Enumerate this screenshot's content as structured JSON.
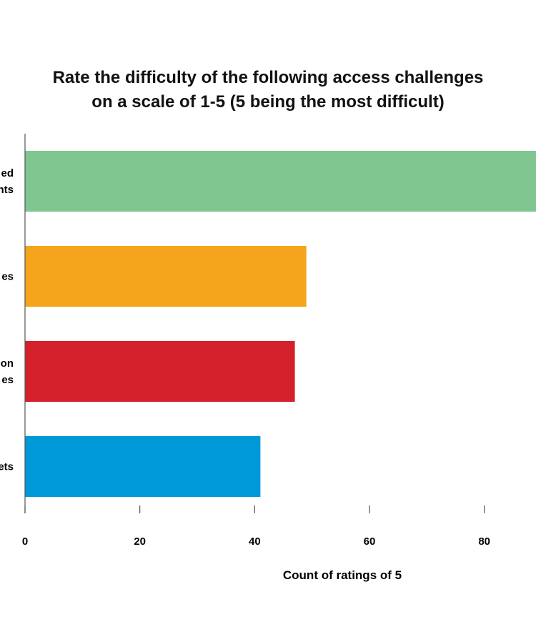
{
  "chart_data": {
    "type": "bar",
    "orientation": "horizontal",
    "title_lines": [
      "Rate the difficulty of the following access challenges",
      "on a scale of 1-5 (5 being the most difficult)"
    ],
    "categories": [
      {
        "lines": [
          "ed",
          "nts"
        ],
        "value": 90,
        "color": "#7fc691"
      },
      {
        "lines": [
          "es"
        ],
        "value": 49,
        "color": "#f5a51c"
      },
      {
        "lines": [
          "on",
          "es"
        ],
        "value": 47,
        "color": "#d4202a"
      },
      {
        "lines": [
          "ets"
        ],
        "value": 41,
        "color": "#0099d8"
      }
    ],
    "x_ticks": [
      0,
      20,
      40,
      60,
      80
    ],
    "xlim": [
      0,
      89
    ],
    "xlabel": "Count of ratings of 5",
    "ylabel": ""
  }
}
